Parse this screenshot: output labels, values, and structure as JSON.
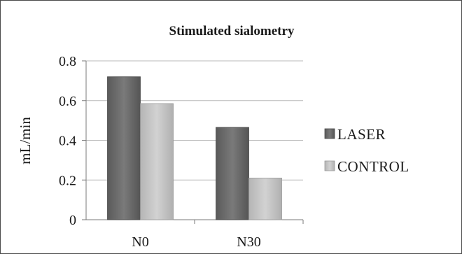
{
  "chart_data": {
    "type": "bar",
    "title": "Stimulated sialometry",
    "xlabel": "",
    "ylabel": "mL/min",
    "ylim": [
      0,
      0.8
    ],
    "yticks": [
      "0",
      "0.2",
      "0.4",
      "0.6",
      "0.8"
    ],
    "categories": [
      "N0",
      "N30"
    ],
    "series": [
      {
        "name": "LASER",
        "values": [
          0.72,
          0.465
        ],
        "color": "#6b6b6b"
      },
      {
        "name": "CONTROL",
        "values": [
          0.585,
          0.21
        ],
        "color": "#c4c4c4"
      }
    ],
    "grid": true,
    "legend": "right"
  }
}
